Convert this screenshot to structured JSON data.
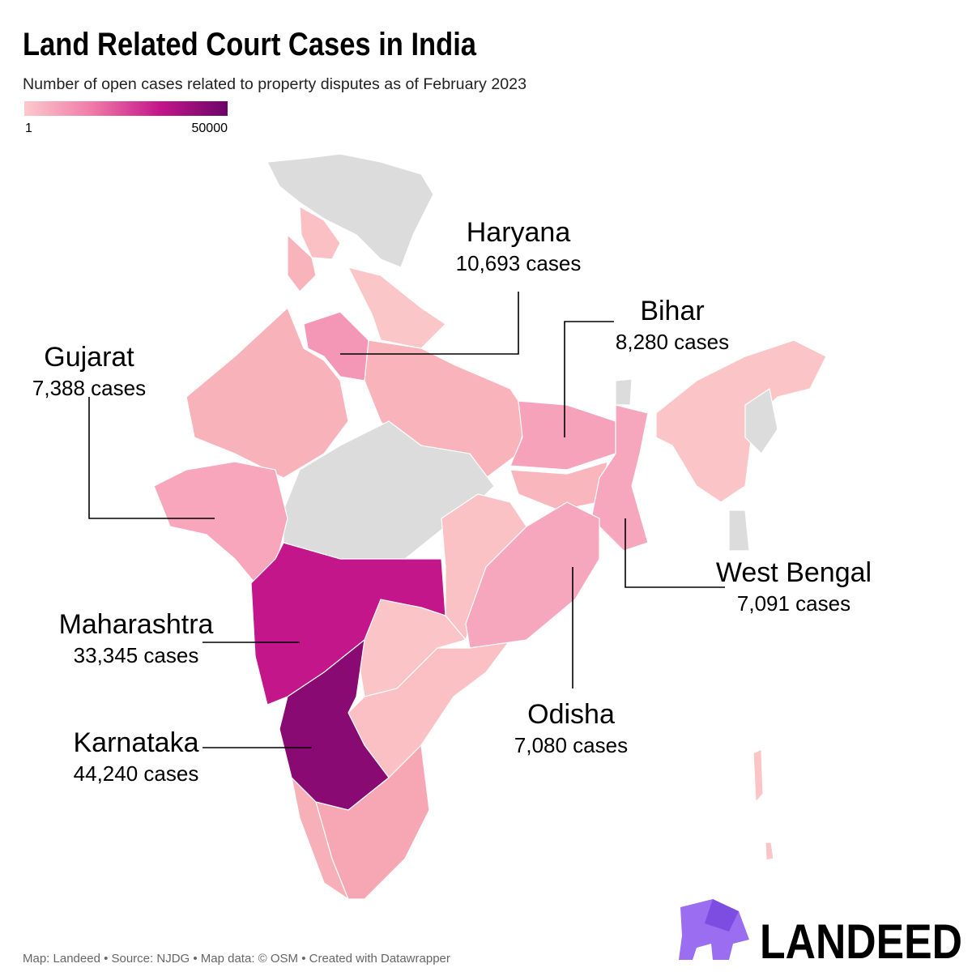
{
  "header": {
    "title": "Land Related Court Cases in India",
    "subtitle": "Number of open cases related to property disputes as of February 2023"
  },
  "legend": {
    "min": 1,
    "max": 50000,
    "colors": [
      "#fcc9cc",
      "#f07aa8",
      "#c3168a",
      "#6c0469"
    ]
  },
  "annotations": [
    {
      "name": "Haryana",
      "value": 10693,
      "label": "10,693 cases"
    },
    {
      "name": "Bihar",
      "value": 8280,
      "label": "8,280 cases"
    },
    {
      "name": "Gujarat",
      "value": 7388,
      "label": "7,388 cases"
    },
    {
      "name": "West Bengal",
      "value": 7091,
      "label": "7,091 cases"
    },
    {
      "name": "Maharashtra",
      "value": 33345,
      "label": "33,345 cases"
    },
    {
      "name": "Karnataka",
      "value": 44240,
      "label": "44,240 cases"
    },
    {
      "name": "Odisha",
      "value": 7080,
      "label": "7,080 cases"
    }
  ],
  "footer": "Map: Landeed • Source: NJDG • Map data: © OSM • Created with Datawrapper",
  "logo": "LANDEED"
}
